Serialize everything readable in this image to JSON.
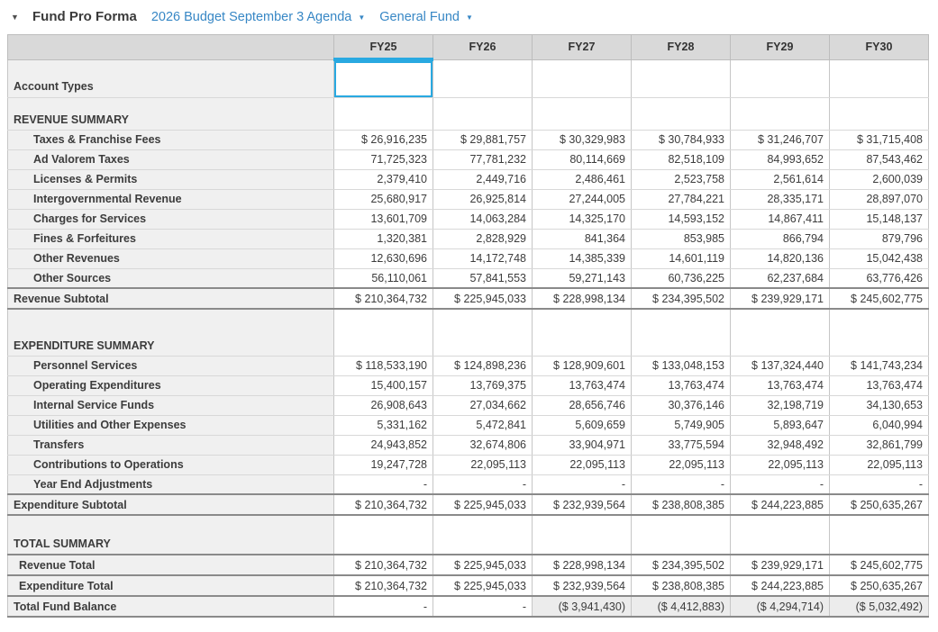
{
  "colors": {
    "accent": "#29a9e1",
    "link_blue": "#3787c5",
    "header_bg": "#d9d9d9",
    "label_bg": "#f0f0f0",
    "dark_border": "#8a8a8a"
  },
  "icons": {
    "collapse_caret": "▼",
    "dropdown_caret": "▼"
  },
  "header": {
    "title": "Fund Pro Forma",
    "dropdowns": [
      {
        "label": "2026 Budget September 3 Agenda"
      },
      {
        "label": "General Fund"
      }
    ]
  },
  "table": {
    "columns": [
      "FY25",
      "FY26",
      "FY27",
      "FY28",
      "FY29",
      "FY30"
    ],
    "selected_column": "FY25",
    "rows": [
      {
        "type": "field",
        "label": "Account Types",
        "values": [
          "",
          "",
          "",
          "",
          "",
          ""
        ]
      },
      {
        "type": "section",
        "label": "REVENUE SUMMARY"
      },
      {
        "type": "data",
        "label": "Taxes & Franchise Fees",
        "values": [
          "$ 26,916,235",
          "$ 29,881,757",
          "$ 30,329,983",
          "$ 30,784,933",
          "$ 31,246,707",
          "$ 31,715,408"
        ]
      },
      {
        "type": "data",
        "label": "Ad Valorem Taxes",
        "values": [
          "71,725,323",
          "77,781,232",
          "80,114,669",
          "82,518,109",
          "84,993,652",
          "87,543,462"
        ]
      },
      {
        "type": "data",
        "label": "Licenses & Permits",
        "values": [
          "2,379,410",
          "2,449,716",
          "2,486,461",
          "2,523,758",
          "2,561,614",
          "2,600,039"
        ]
      },
      {
        "type": "data",
        "label": "Intergovernmental Revenue",
        "values": [
          "25,680,917",
          "26,925,814",
          "27,244,005",
          "27,784,221",
          "28,335,171",
          "28,897,070"
        ]
      },
      {
        "type": "data",
        "label": "Charges for Services",
        "values": [
          "13,601,709",
          "14,063,284",
          "14,325,170",
          "14,593,152",
          "14,867,411",
          "15,148,137"
        ]
      },
      {
        "type": "data",
        "label": "Fines & Forfeitures",
        "values": [
          "1,320,381",
          "2,828,929",
          "841,364",
          "853,985",
          "866,794",
          "879,796"
        ]
      },
      {
        "type": "data",
        "label": "Other Revenues",
        "values": [
          "12,630,696",
          "14,172,748",
          "14,385,339",
          "14,601,119",
          "14,820,136",
          "15,042,438"
        ]
      },
      {
        "type": "data",
        "label": "Other Sources",
        "values": [
          "56,110,061",
          "57,841,553",
          "59,271,143",
          "60,736,225",
          "62,237,684",
          "63,776,426"
        ]
      },
      {
        "type": "subtotal",
        "label": "Revenue Subtotal",
        "values": [
          "$ 210,364,732",
          "$ 225,945,033",
          "$ 228,998,134",
          "$ 234,395,502",
          "$ 239,929,171",
          "$ 245,602,775"
        ]
      },
      {
        "type": "section",
        "label": "EXPENDITURE SUMMARY"
      },
      {
        "type": "data",
        "label": "Personnel Services",
        "values": [
          "$ 118,533,190",
          "$ 124,898,236",
          "$ 128,909,601",
          "$ 133,048,153",
          "$ 137,324,440",
          "$ 141,743,234"
        ]
      },
      {
        "type": "data",
        "label": "Operating Expenditures",
        "values": [
          "15,400,157",
          "13,769,375",
          "13,763,474",
          "13,763,474",
          "13,763,474",
          "13,763,474"
        ]
      },
      {
        "type": "data",
        "label": "Internal Service Funds",
        "values": [
          "26,908,643",
          "27,034,662",
          "28,656,746",
          "30,376,146",
          "32,198,719",
          "34,130,653"
        ]
      },
      {
        "type": "data",
        "label": "Utilities and Other Expenses",
        "values": [
          "5,331,162",
          "5,472,841",
          "5,609,659",
          "5,749,905",
          "5,893,647",
          "6,040,994"
        ]
      },
      {
        "type": "data",
        "label": "Transfers",
        "values": [
          "24,943,852",
          "32,674,806",
          "33,904,971",
          "33,775,594",
          "32,948,492",
          "32,861,799"
        ]
      },
      {
        "type": "data",
        "label": "Contributions to Operations",
        "values": [
          "19,247,728",
          "22,095,113",
          "22,095,113",
          "22,095,113",
          "22,095,113",
          "22,095,113"
        ]
      },
      {
        "type": "data",
        "label": "Year End Adjustments",
        "values": [
          "-",
          "-",
          "-",
          "-",
          "-",
          "-"
        ]
      },
      {
        "type": "subtotal",
        "label": "Expenditure Subtotal",
        "values": [
          "$ 210,364,732",
          "$ 225,945,033",
          "$ 232,939,564",
          "$ 238,808,385",
          "$ 244,223,885",
          "$ 250,635,267"
        ]
      },
      {
        "type": "section",
        "label": "TOTAL SUMMARY"
      },
      {
        "type": "total",
        "label": "Revenue Total",
        "values": [
          "$ 210,364,732",
          "$ 225,945,033",
          "$ 228,998,134",
          "$ 234,395,502",
          "$ 239,929,171",
          "$ 245,602,775"
        ]
      },
      {
        "type": "total",
        "label": "Expenditure Total",
        "values": [
          "$ 210,364,732",
          "$ 225,945,033",
          "$ 232,939,564",
          "$ 238,808,385",
          "$ 244,223,885",
          "$ 250,635,267"
        ]
      },
      {
        "type": "grand",
        "label": "Total Fund Balance",
        "values": [
          "-",
          "-",
          "($ 3,941,430)",
          "($ 4,412,883)",
          "($ 4,294,714)",
          "($ 5,032,492)"
        ]
      }
    ]
  }
}
